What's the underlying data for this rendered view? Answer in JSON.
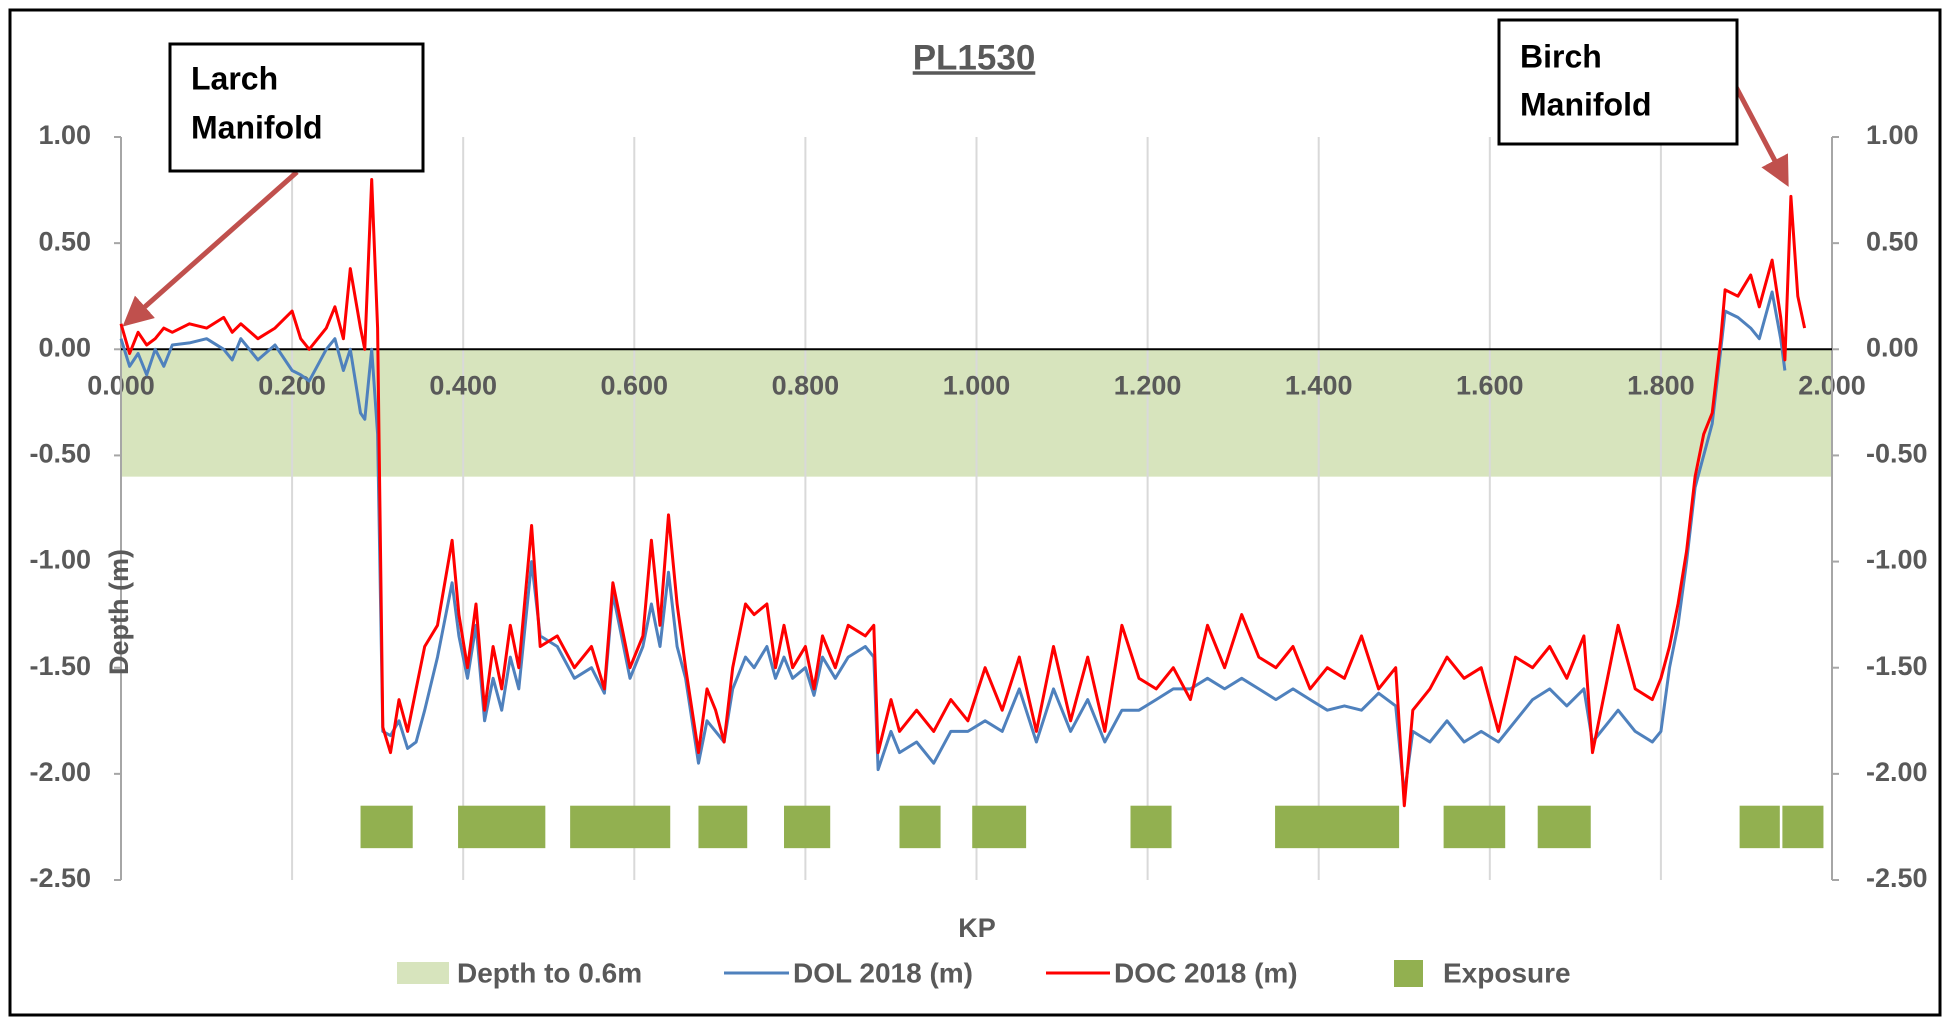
{
  "chart_data": {
    "type": "line",
    "title": "PL1530",
    "x_label": "KP",
    "y_label": "Depth (m)",
    "xlim": [
      0,
      2
    ],
    "xticks": [
      {
        "value": 0,
        "label": "0.000"
      },
      {
        "value": 0.2,
        "label": "0.200"
      },
      {
        "value": 0.4,
        "label": "0.400"
      },
      {
        "value": 0.6,
        "label": "0.600"
      },
      {
        "value": 0.8,
        "label": "0.800"
      },
      {
        "value": 1,
        "label": "1.000"
      },
      {
        "value": 1.2,
        "label": "1.200"
      },
      {
        "value": 1.4,
        "label": "1.400"
      },
      {
        "value": 1.6,
        "label": "1.600"
      },
      {
        "value": 1.8,
        "label": "1.800"
      },
      {
        "value": 2,
        "label": "2.000"
      }
    ],
    "ylim": [
      -2.5,
      1
    ],
    "yticks": [
      {
        "value": 1,
        "label": "1.00"
      },
      {
        "value": 0.5,
        "label": "0.50"
      },
      {
        "value": 0,
        "label": "0.00"
      },
      {
        "value": -0.5,
        "label": "-0.50"
      },
      {
        "value": -1,
        "label": "-1.00"
      },
      {
        "value": -1.5,
        "label": "-1.50"
      },
      {
        "value": -2,
        "label": "-2.00"
      },
      {
        "value": -2.5,
        "label": "-2.50"
      }
    ],
    "y2lim": [
      -2.5,
      1
    ],
    "y2ticks": [
      {
        "value": 1,
        "label": "1.00"
      },
      {
        "value": 0.5,
        "label": "0.50"
      },
      {
        "value": 0,
        "label": "0.00"
      },
      {
        "value": -0.5,
        "label": "-0.50"
      },
      {
        "value": -1,
        "label": "-1.00"
      },
      {
        "value": -1.5,
        "label": "-1.50"
      },
      {
        "value": -2,
        "label": "-2.00"
      },
      {
        "value": -2.5,
        "label": "-2.50"
      }
    ],
    "grid": true,
    "band": {
      "name": "Depth to 0.6m",
      "color": "#d7e4bd",
      "y_range": [
        0,
        -0.6
      ]
    },
    "x": [
      0,
      0.01,
      0.02,
      0.03,
      0.04,
      0.05,
      0.06,
      0.08,
      0.1,
      0.12,
      0.13,
      0.14,
      0.16,
      0.18,
      0.2,
      0.21,
      0.22,
      0.24,
      0.25,
      0.26,
      0.268,
      0.28,
      0.285,
      0.293,
      0.3,
      0.306,
      0.315,
      0.325,
      0.335,
      0.345,
      0.355,
      0.37,
      0.387,
      0.395,
      0.405,
      0.415,
      0.425,
      0.435,
      0.445,
      0.455,
      0.465,
      0.48,
      0.49,
      0.51,
      0.53,
      0.55,
      0.565,
      0.575,
      0.585,
      0.595,
      0.61,
      0.62,
      0.63,
      0.64,
      0.65,
      0.66,
      0.675,
      0.685,
      0.695,
      0.705,
      0.715,
      0.73,
      0.74,
      0.755,
      0.765,
      0.775,
      0.785,
      0.8,
      0.81,
      0.82,
      0.835,
      0.85,
      0.87,
      0.88,
      0.885,
      0.9,
      0.91,
      0.93,
      0.95,
      0.97,
      0.99,
      1.01,
      1.03,
      1.05,
      1.07,
      1.09,
      1.11,
      1.13,
      1.15,
      1.17,
      1.19,
      1.21,
      1.23,
      1.25,
      1.27,
      1.29,
      1.31,
      1.33,
      1.35,
      1.37,
      1.39,
      1.41,
      1.43,
      1.45,
      1.47,
      1.49,
      1.5,
      1.51,
      1.53,
      1.55,
      1.57,
      1.59,
      1.61,
      1.63,
      1.65,
      1.67,
      1.69,
      1.71,
      1.72,
      1.74,
      1.75,
      1.77,
      1.79,
      1.8,
      1.81,
      1.82,
      1.83,
      1.84,
      1.85,
      1.86,
      1.87,
      1.875,
      1.89,
      1.905,
      1.915,
      1.93,
      1.94,
      1.945,
      1.952,
      1.96,
      1.968
    ],
    "series": [
      {
        "name": "DOL 2018 (m)",
        "color": "#4f81bd",
        "values": [
          0.05,
          -0.08,
          -0.02,
          -0.12,
          0.0,
          -0.08,
          0.02,
          0.03,
          0.05,
          0.0,
          -0.05,
          0.05,
          -0.05,
          0.02,
          -0.1,
          -0.12,
          -0.15,
          0.0,
          0.05,
          -0.1,
          0.0,
          -0.3,
          -0.33,
          0.0,
          -0.4,
          -1.8,
          -1.82,
          -1.75,
          -1.88,
          -1.85,
          -1.7,
          -1.45,
          -1.1,
          -1.35,
          -1.55,
          -1.3,
          -1.75,
          -1.55,
          -1.7,
          -1.45,
          -1.6,
          -1.0,
          -1.35,
          -1.4,
          -1.55,
          -1.5,
          -1.62,
          -1.15,
          -1.35,
          -1.55,
          -1.4,
          -1.2,
          -1.4,
          -1.05,
          -1.4,
          -1.55,
          -1.95,
          -1.75,
          -1.8,
          -1.85,
          -1.6,
          -1.45,
          -1.5,
          -1.4,
          -1.55,
          -1.45,
          -1.55,
          -1.5,
          -1.63,
          -1.45,
          -1.55,
          -1.45,
          -1.4,
          -1.45,
          -1.98,
          -1.8,
          -1.9,
          -1.85,
          -1.95,
          -1.8,
          -1.8,
          -1.75,
          -1.8,
          -1.6,
          -1.85,
          -1.6,
          -1.8,
          -1.65,
          -1.85,
          -1.7,
          -1.7,
          -1.65,
          -1.6,
          -1.6,
          -1.55,
          -1.6,
          -1.55,
          -1.6,
          -1.65,
          -1.6,
          -1.65,
          -1.7,
          -1.68,
          -1.7,
          -1.62,
          -1.68,
          -2.1,
          -1.8,
          -1.85,
          -1.75,
          -1.85,
          -1.8,
          -1.85,
          -1.75,
          -1.65,
          -1.6,
          -1.68,
          -1.6,
          -1.85,
          -1.75,
          -1.7,
          -1.8,
          -1.85,
          -1.8,
          -1.5,
          -1.3,
          -1.0,
          -0.65,
          -0.5,
          -0.35,
          0.0,
          0.18,
          0.15,
          0.1,
          0.05,
          0.27,
          0.05,
          -0.1,
          null,
          null,
          null
        ]
      },
      {
        "name": "DOC 2018 (m)",
        "color": "#ff0000",
        "values": [
          0.12,
          -0.02,
          0.08,
          0.02,
          0.05,
          0.1,
          0.08,
          0.12,
          0.1,
          0.15,
          0.08,
          0.12,
          0.05,
          0.1,
          0.18,
          0.05,
          0.0,
          0.1,
          0.2,
          0.05,
          0.38,
          0.1,
          0.0,
          0.8,
          0.1,
          -1.78,
          -1.9,
          -1.65,
          -1.8,
          -1.6,
          -1.4,
          -1.3,
          -0.9,
          -1.25,
          -1.5,
          -1.2,
          -1.7,
          -1.4,
          -1.6,
          -1.3,
          -1.5,
          -0.83,
          -1.4,
          -1.35,
          -1.5,
          -1.4,
          -1.6,
          -1.1,
          -1.3,
          -1.5,
          -1.35,
          -0.9,
          -1.3,
          -0.78,
          -1.2,
          -1.5,
          -1.9,
          -1.6,
          -1.7,
          -1.85,
          -1.5,
          -1.2,
          -1.25,
          -1.2,
          -1.5,
          -1.3,
          -1.5,
          -1.4,
          -1.6,
          -1.35,
          -1.5,
          -1.3,
          -1.35,
          -1.3,
          -1.9,
          -1.65,
          -1.8,
          -1.7,
          -1.8,
          -1.65,
          -1.75,
          -1.5,
          -1.7,
          -1.45,
          -1.8,
          -1.4,
          -1.75,
          -1.45,
          -1.8,
          -1.3,
          -1.55,
          -1.6,
          -1.5,
          -1.65,
          -1.3,
          -1.5,
          -1.25,
          -1.45,
          -1.5,
          -1.4,
          -1.6,
          -1.5,
          -1.55,
          -1.35,
          -1.6,
          -1.5,
          -2.15,
          -1.7,
          -1.6,
          -1.45,
          -1.55,
          -1.5,
          -1.8,
          -1.45,
          -1.5,
          -1.4,
          -1.55,
          -1.35,
          -1.9,
          -1.5,
          -1.3,
          -1.6,
          -1.65,
          -1.55,
          -1.4,
          -1.2,
          -0.95,
          -0.6,
          -0.4,
          -0.3,
          0.05,
          0.28,
          0.25,
          0.35,
          0.2,
          0.42,
          0.15,
          -0.05,
          0.72,
          0.25,
          0.1
        ]
      }
    ],
    "exposure": {
      "name": "Exposure",
      "color": "#92b050",
      "y_range": [
        -2.35,
        -2.15
      ],
      "x_start": [
        0.28,
        0.394,
        0.525,
        0.675,
        0.775,
        0.91,
        0.995,
        1.18,
        1.349,
        1.546,
        1.656,
        1.892,
        1.942
      ],
      "x_end": [
        0.341,
        0.496,
        0.642,
        0.732,
        0.829,
        0.958,
        1.058,
        1.228,
        1.494,
        1.618,
        1.718,
        1.939,
        1.99
      ]
    },
    "annotations": [
      {
        "lines": [
          "Larch",
          "Manifold"
        ]
      },
      {
        "lines": [
          "Birch",
          "Manifold"
        ]
      }
    ]
  }
}
